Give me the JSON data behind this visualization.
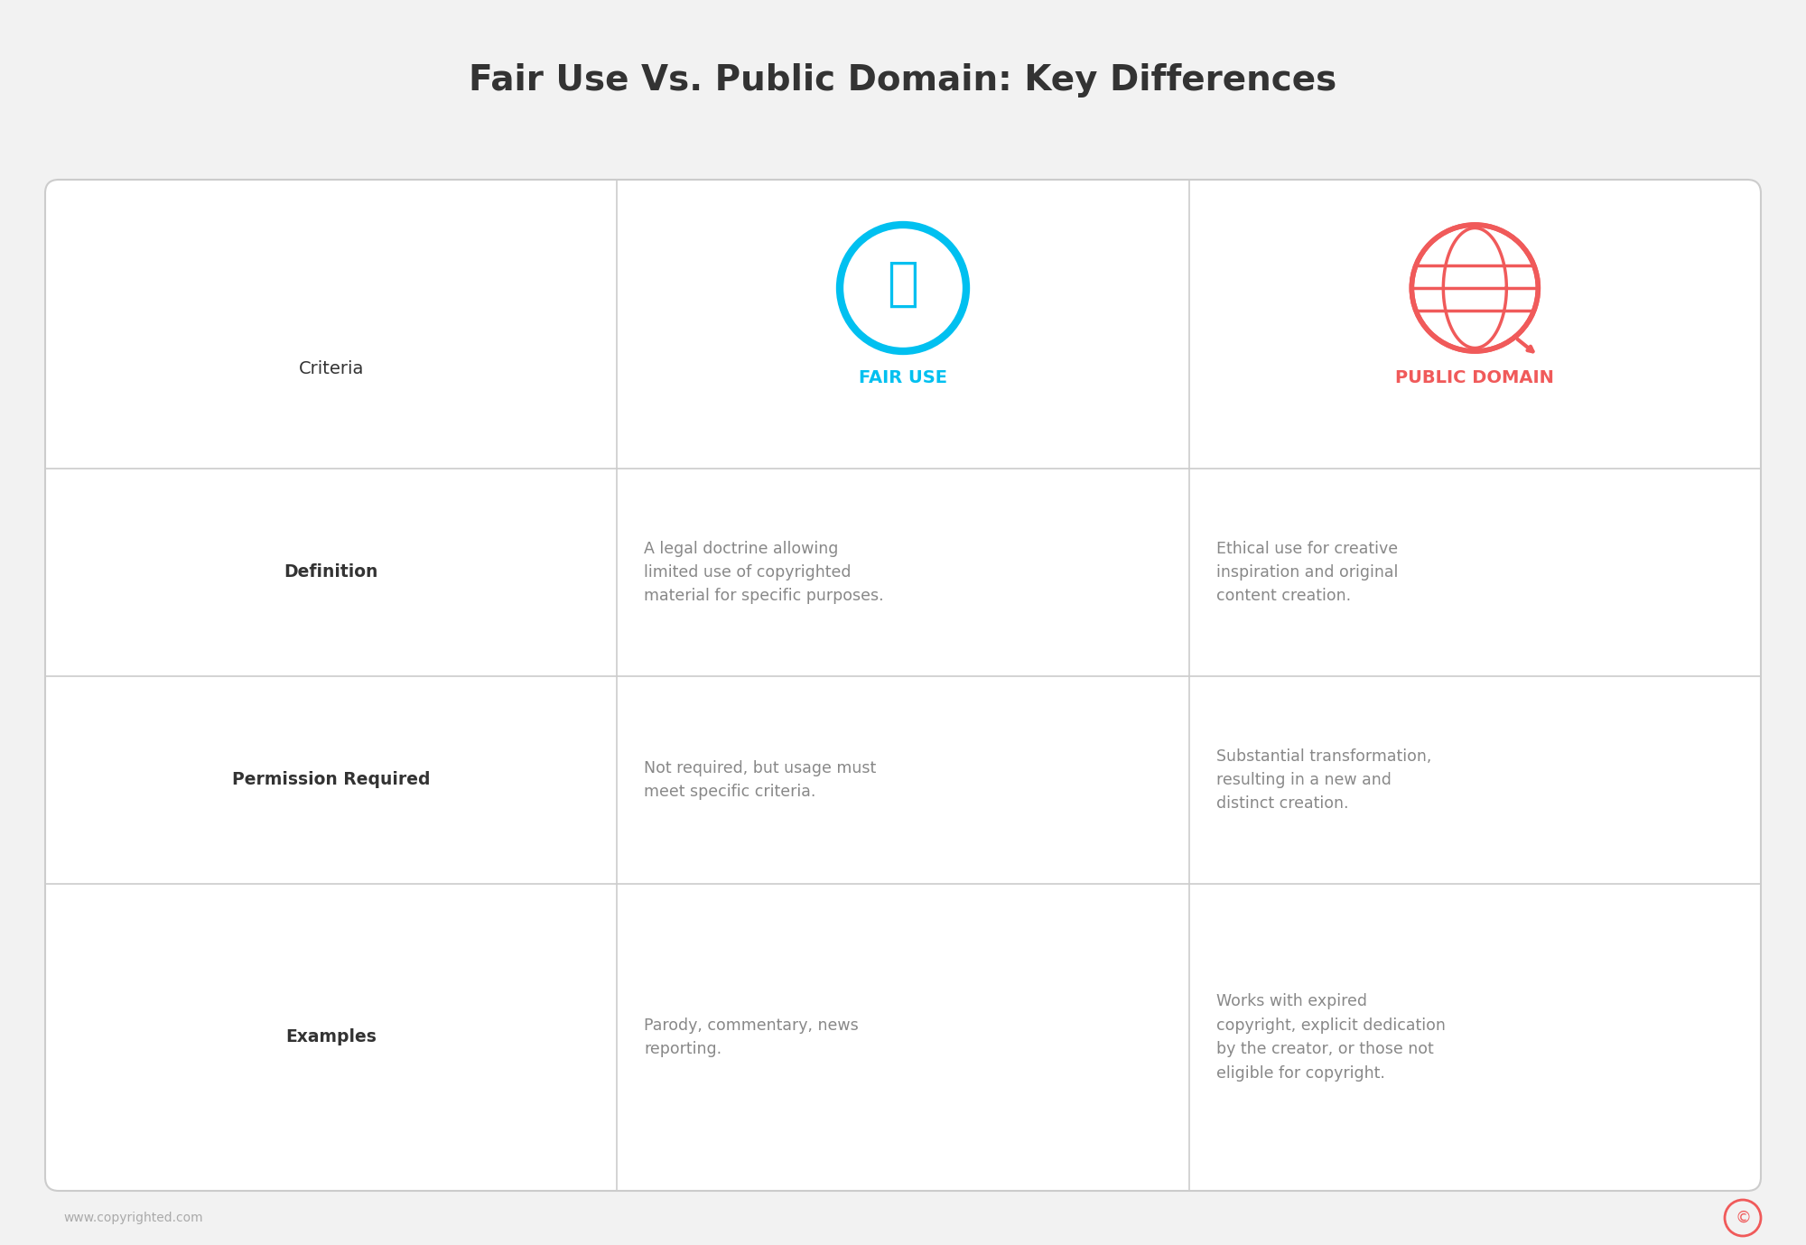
{
  "title": "Fair Use Vs. Public Domain: Key Differences",
  "title_fontsize": 28,
  "title_color": "#333333",
  "background_color": "#f2f2f2",
  "table_bg": "#ffffff",
  "border_color": "#cccccc",
  "fair_use_color": "#00c0f0",
  "public_domain_color": "#f05a5a",
  "criteria_label_color": "#333333",
  "content_text_color": "#888888",
  "row_label_color": "#333333",
  "row_labels": [
    "Criteria",
    "Definition",
    "Permission Required",
    "Examples"
  ],
  "fair_use_label": "FAIR USE",
  "public_domain_label": "PUBLIC DOMAIN",
  "fair_use_definition": "A legal doctrine allowing\nlimited use of copyrighted\nmaterial for specific purposes.",
  "fair_use_permission": "Not required, but usage must\nmeet specific criteria.",
  "fair_use_examples": "Parody, commentary, news\nreporting.",
  "public_domain_definition": "Ethical use for creative\ninspiration and original\ncontent creation.",
  "public_domain_permission": "Substantial transformation,\nresulting in a new and\ndistinct creation.",
  "public_domain_examples": "Works with expired\ncopyright, explicit dedication\nby the creator, or those not\neligible for copyright.",
  "footer_text": "www.copyrighted.com",
  "footer_color": "#aaaaaa"
}
